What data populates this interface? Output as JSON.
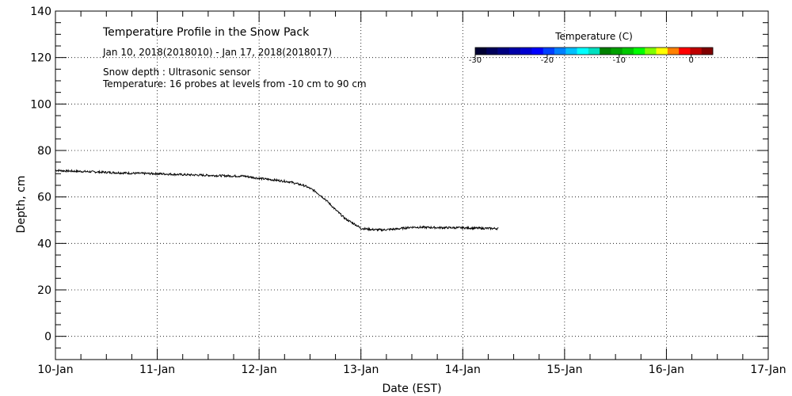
{
  "chart_data": {
    "type": "line",
    "title": "Temperature Profile in the Snow Pack",
    "subtitle": "Jan 10, 2018(2018010) - Jan 17, 2018(2018017)",
    "notes": [
      "Snow depth : Ultrasonic sensor",
      "Temperature: 16 probes at levels from -10 cm to 90 cm"
    ],
    "xlabel": "Date (EST)",
    "ylabel": "Depth, cm",
    "x_tick_labels": [
      "10-Jan",
      "11-Jan",
      "12-Jan",
      "13-Jan",
      "14-Jan",
      "15-Jan",
      "16-Jan",
      "17-Jan"
    ],
    "y_tick_labels": [
      "0",
      "20",
      "40",
      "60",
      "80",
      "100",
      "120",
      "140"
    ],
    "xlim": [
      0,
      7
    ],
    "ylim": [
      -10,
      140
    ],
    "grid": true,
    "series": [
      {
        "x": [
          0.0,
          0.1,
          0.25,
          0.5,
          0.75,
          1.0,
          1.25,
          1.5,
          1.75,
          1.85,
          2.0,
          2.15,
          2.3,
          2.45,
          2.55,
          2.65,
          2.75,
          2.85,
          2.95,
          3.0,
          3.1,
          3.2,
          3.35,
          3.5,
          3.75,
          4.0,
          4.2,
          4.35
        ],
        "y": [
          71.5,
          71.2,
          71.0,
          70.6,
          70.2,
          70.0,
          69.6,
          69.3,
          69.0,
          69.0,
          68.0,
          67.3,
          66.5,
          64.8,
          62.5,
          59.0,
          54.5,
          50.5,
          48.0,
          46.5,
          46.0,
          45.8,
          46.2,
          47.0,
          46.8,
          46.7,
          46.5,
          46.4
        ],
        "color": "#000000"
      }
    ],
    "colorbar": {
      "title": "Temperature (C)",
      "tick_labels": [
        "-30",
        "-20",
        "-10",
        "0"
      ],
      "range": [
        -30,
        3
      ],
      "colors": [
        "#000033",
        "#00005a",
        "#000080",
        "#0000a8",
        "#0000d0",
        "#0000ff",
        "#0040ff",
        "#0080ff",
        "#00c0ff",
        "#00ffff",
        "#00e0c0",
        "#008000",
        "#00a000",
        "#00c800",
        "#00ff00",
        "#80ff00",
        "#ffff00",
        "#ff8000",
        "#ff0000",
        "#c00000",
        "#800000"
      ]
    }
  }
}
